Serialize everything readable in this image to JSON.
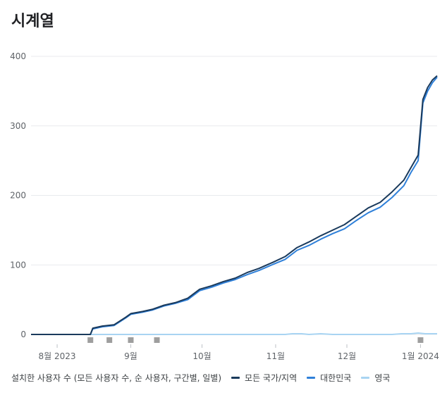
{
  "title": "시계열",
  "legend": {
    "caption": "설치한 사용자 수 (모든 사용자 수, 순 사용자, 구간별, 일별)"
  },
  "colors": {
    "all": "#1a3a5c",
    "kr": "#2f80d9",
    "uk": "#a8d4f2",
    "grid": "#e8eaed",
    "marker": "#9e9e9e"
  },
  "chart_data": {
    "type": "line",
    "title": "시계열",
    "ylim": [
      0,
      400
    ],
    "yticks": [
      "0",
      "100",
      "200",
      "300",
      "400"
    ],
    "x_range": [
      "2023-07-21",
      "2024-01-08"
    ],
    "xticks": [
      {
        "label": "8월 2023",
        "date": "2023-08-01"
      },
      {
        "label": "9월",
        "date": "2023-09-01"
      },
      {
        "label": "10월",
        "date": "2023-10-01"
      },
      {
        "label": "11월",
        "date": "2023-11-01"
      },
      {
        "label": "12월",
        "date": "2023-12-01"
      },
      {
        "label": "1월 2024",
        "date": "2024-01-01"
      }
    ],
    "event_markers": [
      "2023-08-15",
      "2023-08-23",
      "2023-09-01",
      "2023-09-12",
      "2024-01-01"
    ],
    "series": [
      {
        "name": "모든 국가/지역",
        "color": "#1a3a5c",
        "points": [
          [
            "2023-07-21",
            0
          ],
          [
            "2023-08-01",
            0
          ],
          [
            "2023-08-15",
            0
          ],
          [
            "2023-08-16",
            9
          ],
          [
            "2023-08-20",
            12
          ],
          [
            "2023-08-25",
            14
          ],
          [
            "2023-08-30",
            25
          ],
          [
            "2023-09-01",
            30
          ],
          [
            "2023-09-06",
            33
          ],
          [
            "2023-09-10",
            36
          ],
          [
            "2023-09-15",
            42
          ],
          [
            "2023-09-20",
            46
          ],
          [
            "2023-09-25",
            52
          ],
          [
            "2023-09-30",
            65
          ],
          [
            "2023-10-05",
            70
          ],
          [
            "2023-10-10",
            76
          ],
          [
            "2023-10-15",
            81
          ],
          [
            "2023-10-20",
            89
          ],
          [
            "2023-10-25",
            95
          ],
          [
            "2023-10-31",
            104
          ],
          [
            "2023-11-05",
            112
          ],
          [
            "2023-11-10",
            125
          ],
          [
            "2023-11-15",
            133
          ],
          [
            "2023-11-20",
            142
          ],
          [
            "2023-11-25",
            150
          ],
          [
            "2023-11-30",
            158
          ],
          [
            "2023-12-05",
            170
          ],
          [
            "2023-12-10",
            182
          ],
          [
            "2023-12-15",
            190
          ],
          [
            "2023-12-20",
            205
          ],
          [
            "2023-12-25",
            222
          ],
          [
            "2023-12-28",
            240
          ],
          [
            "2023-12-31",
            258
          ],
          [
            "2024-01-02",
            338
          ],
          [
            "2024-01-04",
            355
          ],
          [
            "2024-01-06",
            366
          ],
          [
            "2024-01-08",
            372
          ]
        ]
      },
      {
        "name": "대한민국",
        "color": "#2f80d9",
        "points": [
          [
            "2023-07-21",
            0
          ],
          [
            "2023-08-01",
            0
          ],
          [
            "2023-08-15",
            0
          ],
          [
            "2023-08-16",
            8
          ],
          [
            "2023-08-20",
            11
          ],
          [
            "2023-08-25",
            13
          ],
          [
            "2023-08-30",
            24
          ],
          [
            "2023-09-01",
            29
          ],
          [
            "2023-09-06",
            32
          ],
          [
            "2023-09-10",
            35
          ],
          [
            "2023-09-15",
            41
          ],
          [
            "2023-09-20",
            45
          ],
          [
            "2023-09-25",
            50
          ],
          [
            "2023-09-30",
            63
          ],
          [
            "2023-10-05",
            68
          ],
          [
            "2023-10-10",
            74
          ],
          [
            "2023-10-15",
            79
          ],
          [
            "2023-10-20",
            86
          ],
          [
            "2023-10-25",
            92
          ],
          [
            "2023-10-31",
            101
          ],
          [
            "2023-11-05",
            108
          ],
          [
            "2023-11-10",
            121
          ],
          [
            "2023-11-15",
            128
          ],
          [
            "2023-11-20",
            137
          ],
          [
            "2023-11-25",
            145
          ],
          [
            "2023-11-30",
            152
          ],
          [
            "2023-12-05",
            164
          ],
          [
            "2023-12-10",
            175
          ],
          [
            "2023-12-15",
            183
          ],
          [
            "2023-12-20",
            197
          ],
          [
            "2023-12-25",
            214
          ],
          [
            "2023-12-28",
            233
          ],
          [
            "2023-12-31",
            250
          ],
          [
            "2024-01-02",
            333
          ],
          [
            "2024-01-04",
            350
          ],
          [
            "2024-01-06",
            362
          ],
          [
            "2024-01-08",
            370
          ]
        ]
      },
      {
        "name": "영국",
        "color": "#a8d4f2",
        "points": [
          [
            "2023-07-21",
            0
          ],
          [
            "2023-10-31",
            0
          ],
          [
            "2023-11-05",
            0
          ],
          [
            "2023-11-08",
            1
          ],
          [
            "2023-11-12",
            1
          ],
          [
            "2023-11-15",
            0
          ],
          [
            "2023-11-20",
            1
          ],
          [
            "2023-11-25",
            0
          ],
          [
            "2023-12-20",
            0
          ],
          [
            "2023-12-24",
            1
          ],
          [
            "2023-12-28",
            1
          ],
          [
            "2023-12-31",
            2
          ],
          [
            "2024-01-03",
            1
          ],
          [
            "2024-01-08",
            1
          ]
        ]
      }
    ]
  }
}
